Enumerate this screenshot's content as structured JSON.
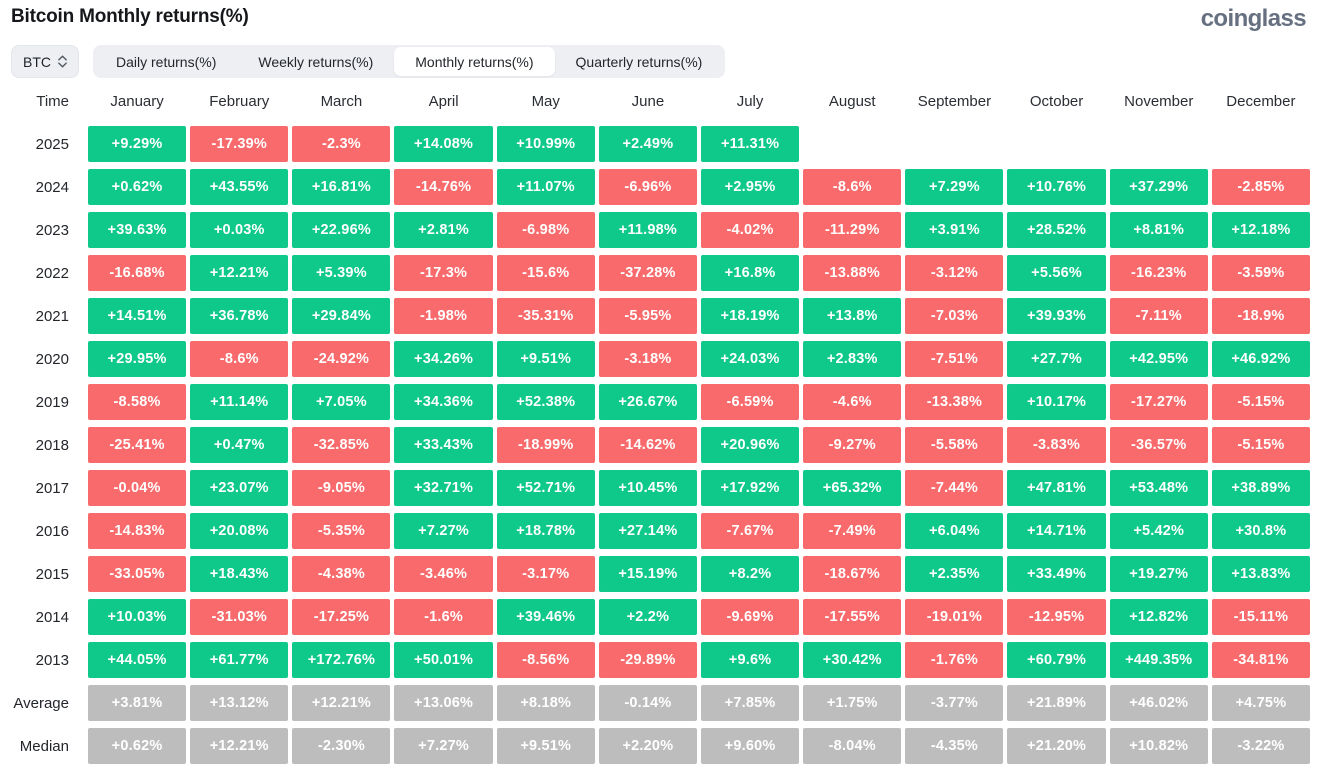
{
  "page": {
    "title": "Bitcoin Monthly returns(%)",
    "logo_text": "coinglass"
  },
  "controls": {
    "symbol_select": {
      "value": "BTC",
      "icon": "up-down-chevrons-icon"
    },
    "tabs": [
      {
        "label": "Daily returns(%)",
        "selected": false
      },
      {
        "label": "Weekly returns(%)",
        "selected": false
      },
      {
        "label": "Monthly returns(%)",
        "selected": true
      },
      {
        "label": "Quarterly returns(%)",
        "selected": false
      }
    ]
  },
  "colors": {
    "positive": "#0ec98a",
    "negative": "#f86a6b",
    "summary": "#bdbdbd",
    "control_bg": "#edeff3",
    "logo": "#667080"
  },
  "table": {
    "time_header": "Time",
    "months": [
      "January",
      "February",
      "March",
      "April",
      "May",
      "June",
      "July",
      "August",
      "September",
      "October",
      "November",
      "December"
    ],
    "rows": [
      {
        "label": "2025",
        "type": "year",
        "values": [
          "+9.29%",
          "-17.39%",
          "-2.3%",
          "+14.08%",
          "+10.99%",
          "+2.49%",
          "+11.31%",
          null,
          null,
          null,
          null,
          null
        ]
      },
      {
        "label": "2024",
        "type": "year",
        "values": [
          "+0.62%",
          "+43.55%",
          "+16.81%",
          "-14.76%",
          "+11.07%",
          "-6.96%",
          "+2.95%",
          "-8.6%",
          "+7.29%",
          "+10.76%",
          "+37.29%",
          "-2.85%"
        ]
      },
      {
        "label": "2023",
        "type": "year",
        "values": [
          "+39.63%",
          "+0.03%",
          "+22.96%",
          "+2.81%",
          "-6.98%",
          "+11.98%",
          "-4.02%",
          "-11.29%",
          "+3.91%",
          "+28.52%",
          "+8.81%",
          "+12.18%"
        ]
      },
      {
        "label": "2022",
        "type": "year",
        "values": [
          "-16.68%",
          "+12.21%",
          "+5.39%",
          "-17.3%",
          "-15.6%",
          "-37.28%",
          "+16.8%",
          "-13.88%",
          "-3.12%",
          "+5.56%",
          "-16.23%",
          "-3.59%"
        ]
      },
      {
        "label": "2021",
        "type": "year",
        "values": [
          "+14.51%",
          "+36.78%",
          "+29.84%",
          "-1.98%",
          "-35.31%",
          "-5.95%",
          "+18.19%",
          "+13.8%",
          "-7.03%",
          "+39.93%",
          "-7.11%",
          "-18.9%"
        ]
      },
      {
        "label": "2020",
        "type": "year",
        "values": [
          "+29.95%",
          "-8.6%",
          "-24.92%",
          "+34.26%",
          "+9.51%",
          "-3.18%",
          "+24.03%",
          "+2.83%",
          "-7.51%",
          "+27.7%",
          "+42.95%",
          "+46.92%"
        ]
      },
      {
        "label": "2019",
        "type": "year",
        "values": [
          "-8.58%",
          "+11.14%",
          "+7.05%",
          "+34.36%",
          "+52.38%",
          "+26.67%",
          "-6.59%",
          "-4.6%",
          "-13.38%",
          "+10.17%",
          "-17.27%",
          "-5.15%"
        ]
      },
      {
        "label": "2018",
        "type": "year",
        "values": [
          "-25.41%",
          "+0.47%",
          "-32.85%",
          "+33.43%",
          "-18.99%",
          "-14.62%",
          "+20.96%",
          "-9.27%",
          "-5.58%",
          "-3.83%",
          "-36.57%",
          "-5.15%"
        ]
      },
      {
        "label": "2017",
        "type": "year",
        "values": [
          "-0.04%",
          "+23.07%",
          "-9.05%",
          "+32.71%",
          "+52.71%",
          "+10.45%",
          "+17.92%",
          "+65.32%",
          "-7.44%",
          "+47.81%",
          "+53.48%",
          "+38.89%"
        ]
      },
      {
        "label": "2016",
        "type": "year",
        "values": [
          "-14.83%",
          "+20.08%",
          "-5.35%",
          "+7.27%",
          "+18.78%",
          "+27.14%",
          "-7.67%",
          "-7.49%",
          "+6.04%",
          "+14.71%",
          "+5.42%",
          "+30.8%"
        ]
      },
      {
        "label": "2015",
        "type": "year",
        "values": [
          "-33.05%",
          "+18.43%",
          "-4.38%",
          "-3.46%",
          "-3.17%",
          "+15.19%",
          "+8.2%",
          "-18.67%",
          "+2.35%",
          "+33.49%",
          "+19.27%",
          "+13.83%"
        ]
      },
      {
        "label": "2014",
        "type": "year",
        "values": [
          "+10.03%",
          "-31.03%",
          "-17.25%",
          "-1.6%",
          "+39.46%",
          "+2.2%",
          "-9.69%",
          "-17.55%",
          "-19.01%",
          "-12.95%",
          "+12.82%",
          "-15.11%"
        ]
      },
      {
        "label": "2013",
        "type": "year",
        "values": [
          "+44.05%",
          "+61.77%",
          "+172.76%",
          "+50.01%",
          "-8.56%",
          "-29.89%",
          "+9.6%",
          "+30.42%",
          "-1.76%",
          "+60.79%",
          "+449.35%",
          "-34.81%"
        ]
      },
      {
        "label": "Average",
        "type": "summary",
        "values": [
          "+3.81%",
          "+13.12%",
          "+12.21%",
          "+13.06%",
          "+8.18%",
          "-0.14%",
          "+7.85%",
          "+1.75%",
          "-3.77%",
          "+21.89%",
          "+46.02%",
          "+4.75%"
        ]
      },
      {
        "label": "Median",
        "type": "summary",
        "values": [
          "+0.62%",
          "+12.21%",
          "-2.30%",
          "+7.27%",
          "+9.51%",
          "+2.20%",
          "+9.60%",
          "-8.04%",
          "-4.35%",
          "+21.20%",
          "+10.82%",
          "-3.22%"
        ]
      }
    ]
  }
}
